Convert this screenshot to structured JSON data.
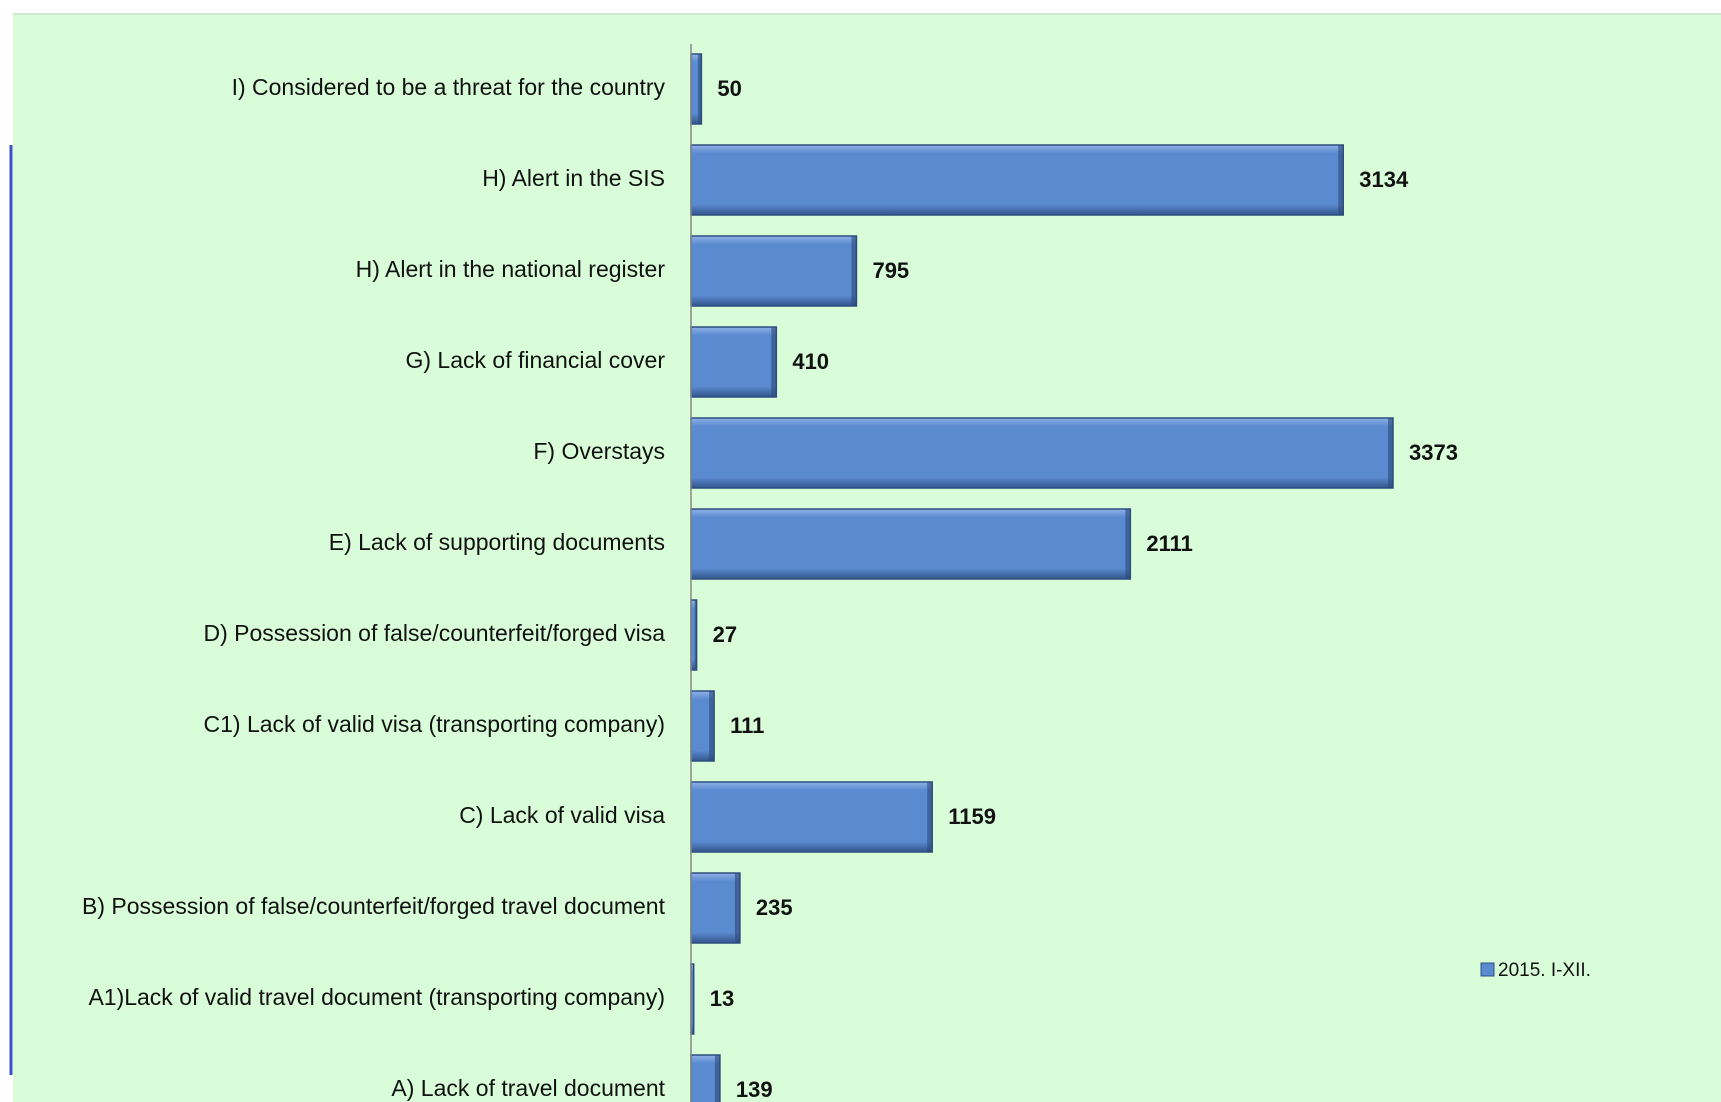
{
  "chart_data": {
    "type": "bar",
    "orientation": "horizontal",
    "categories": [
      "I) Considered to be a threat for the country",
      "H) Alert in the SIS",
      "H) Alert in the national register",
      "G) Lack of financial cover",
      "F) Overstays",
      "E) Lack of supporting documents",
      "D) Possession of false/counterfeit/forged visa",
      "C1) Lack of valid visa (transporting company)",
      "C) Lack of valid visa",
      "B) Possession of false/counterfeit/forged travel document",
      "A1)Lack of valid travel document (transporting company)",
      "A) Lack of travel document"
    ],
    "series": [
      {
        "name": "2015. I-XII.",
        "color": "#5a8ad0",
        "values": [
          50,
          3134,
          795,
          410,
          3373,
          2111,
          27,
          111,
          1159,
          235,
          13,
          139
        ]
      }
    ],
    "legend": "right"
  }
}
